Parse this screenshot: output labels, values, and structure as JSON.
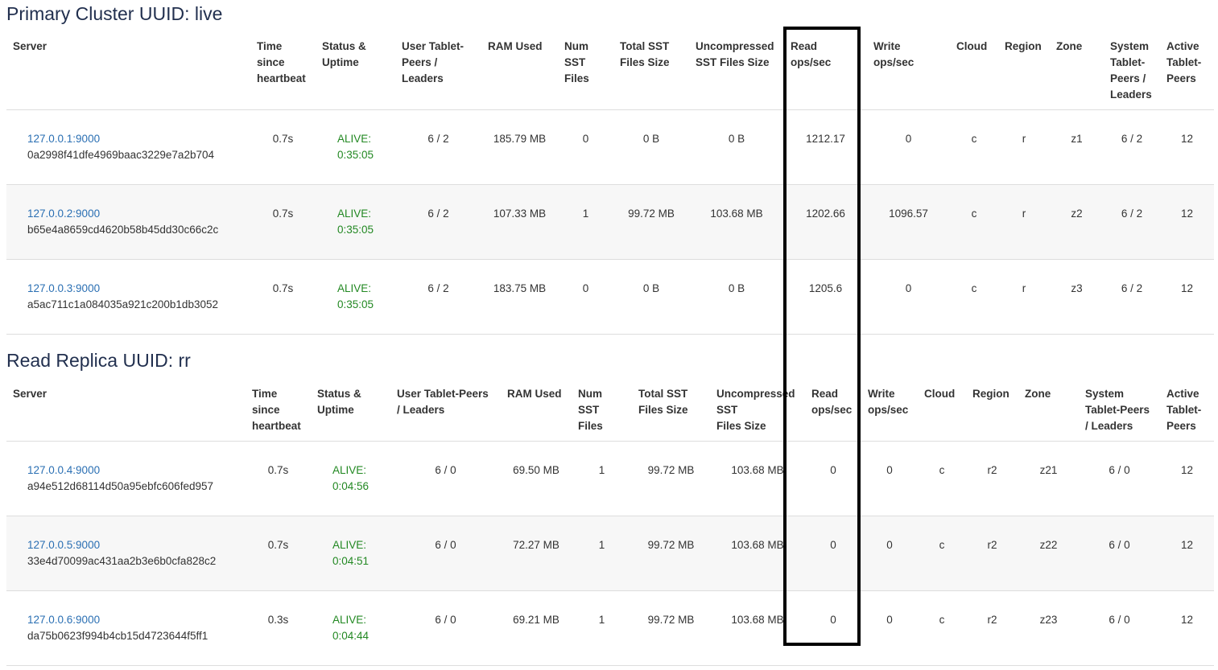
{
  "primary": {
    "title": "Primary Cluster UUID: live",
    "headers": [
      "Server",
      "Time since heartbeat",
      "Status & Uptime",
      "User Tablet-Peers / Leaders",
      "RAM Used",
      "Num SST Files",
      "Total SST Files Size",
      "Uncompressed SST Files Size",
      "Read ops/sec",
      "Write ops/sec",
      "Cloud",
      "Region",
      "Zone",
      "System Tablet-Peers / Leaders",
      "Active Tablet-Peers"
    ],
    "rows": [
      {
        "addr": "127.0.0.1:9000",
        "uuid": "0a2998f41dfe4969baac3229e7a2b704",
        "hb": "0.7s",
        "status": "ALIVE:",
        "uptime": "0:35:05",
        "user": "6 / 2",
        "ram": "185.79 MB",
        "num": "0",
        "total": "0 B",
        "unc": "0 B",
        "read": "1212.17",
        "write": "0",
        "cloud": "c",
        "region": "r",
        "zone": "z1",
        "sys": "6 / 2",
        "active": "12"
      },
      {
        "addr": "127.0.0.2:9000",
        "uuid": "b65e4a8659cd4620b58b45dd30c66c2c",
        "hb": "0.7s",
        "status": "ALIVE:",
        "uptime": "0:35:05",
        "user": "6 / 2",
        "ram": "107.33 MB",
        "num": "1",
        "total": "99.72 MB",
        "unc": "103.68 MB",
        "read": "1202.66",
        "write": "1096.57",
        "cloud": "c",
        "region": "r",
        "zone": "z2",
        "sys": "6 / 2",
        "active": "12"
      },
      {
        "addr": "127.0.0.3:9000",
        "uuid": "a5ac711c1a084035a921c200b1db3052",
        "hb": "0.7s",
        "status": "ALIVE:",
        "uptime": "0:35:05",
        "user": "6 / 2",
        "ram": "183.75 MB",
        "num": "0",
        "total": "0 B",
        "unc": "0 B",
        "read": "1205.6",
        "write": "0",
        "cloud": "c",
        "region": "r",
        "zone": "z3",
        "sys": "6 / 2",
        "active": "12"
      }
    ]
  },
  "replica": {
    "title": "Read Replica UUID: rr",
    "headers": [
      "Server",
      "Time since heartbeat",
      "Status & Uptime",
      "User Tablet-Peers / Leaders",
      "RAM Used",
      "Num SST Files",
      "Total SST Files Size",
      "Uncompressed SST Files Size",
      "Read ops/sec",
      "Write ops/sec",
      "Cloud",
      "Region",
      "Zone",
      "System Tablet-Peers / Leaders",
      "Active Tablet-Peers"
    ],
    "rows": [
      {
        "addr": "127.0.0.4:9000",
        "uuid": "a94e512d68114d50a95ebfc606fed957",
        "hb": "0.7s",
        "status": "ALIVE:",
        "uptime": "0:04:56",
        "user": "6 / 0",
        "ram": "69.50 MB",
        "num": "1",
        "total": "99.72 MB",
        "unc": "103.68 MB",
        "read": "0",
        "write": "0",
        "cloud": "c",
        "region": "r2",
        "zone": "z21",
        "sys": "6 / 0",
        "active": "12"
      },
      {
        "addr": "127.0.0.5:9000",
        "uuid": "33e4d70099ac431aa2b3e6b0cfa828c2",
        "hb": "0.7s",
        "status": "ALIVE:",
        "uptime": "0:04:51",
        "user": "6 / 0",
        "ram": "72.27 MB",
        "num": "1",
        "total": "99.72 MB",
        "unc": "103.68 MB",
        "read": "0",
        "write": "0",
        "cloud": "c",
        "region": "r2",
        "zone": "z22",
        "sys": "6 / 0",
        "active": "12"
      },
      {
        "addr": "127.0.0.6:9000",
        "uuid": "da75b0623f994b4cb15d4723644f5ff1",
        "hb": "0.3s",
        "status": "ALIVE:",
        "uptime": "0:04:44",
        "user": "6 / 0",
        "ram": "69.21 MB",
        "num": "1",
        "total": "99.72 MB",
        "unc": "103.68 MB",
        "read": "0",
        "write": "0",
        "cloud": "c",
        "region": "r2",
        "zone": "z23",
        "sys": "6 / 0",
        "active": "12"
      }
    ]
  },
  "colors": {
    "link": "#2a6fb3",
    "alive": "#228822",
    "highlight_box": "#000000"
  }
}
